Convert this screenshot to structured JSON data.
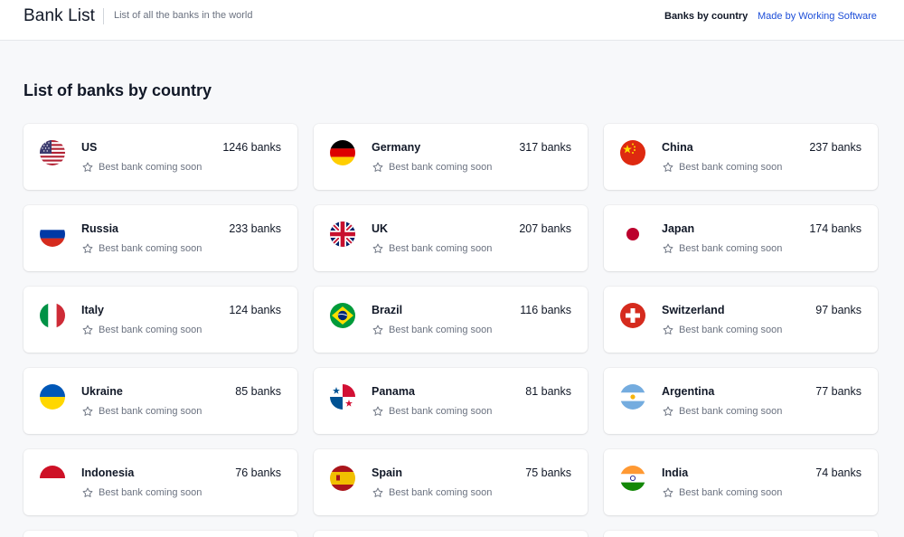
{
  "header": {
    "brand": "Bank List",
    "tagline": "List of all the banks in the world",
    "nav_bycountry": "Banks by country",
    "nav_made": "Made by Working Software"
  },
  "page": {
    "title": "List of banks by country"
  },
  "colors": {
    "accent": "#1d4ed8",
    "bg": "#f7f8fa",
    "card": "#ffffff",
    "muted": "#6b7280"
  },
  "countries": [
    {
      "name": "US",
      "count": "1246 banks",
      "sub": "Best bank coming soon",
      "flag": "us-flag-icon"
    },
    {
      "name": "Germany",
      "count": "317 banks",
      "sub": "Best bank coming soon",
      "flag": "germany-flag-icon"
    },
    {
      "name": "China",
      "count": "237 banks",
      "sub": "Best bank coming soon",
      "flag": "china-flag-icon"
    },
    {
      "name": "Russia",
      "count": "233 banks",
      "sub": "Best bank coming soon",
      "flag": "russia-flag-icon"
    },
    {
      "name": "UK",
      "count": "207 banks",
      "sub": "Best bank coming soon",
      "flag": "uk-flag-icon"
    },
    {
      "name": "Japan",
      "count": "174 banks",
      "sub": "Best bank coming soon",
      "flag": "japan-flag-icon"
    },
    {
      "name": "Italy",
      "count": "124 banks",
      "sub": "Best bank coming soon",
      "flag": "italy-flag-icon"
    },
    {
      "name": "Brazil",
      "count": "116 banks",
      "sub": "Best bank coming soon",
      "flag": "brazil-flag-icon"
    },
    {
      "name": "Switzerland",
      "count": "97 banks",
      "sub": "Best bank coming soon",
      "flag": "switzerland-flag-icon"
    },
    {
      "name": "Ukraine",
      "count": "85 banks",
      "sub": "Best bank coming soon",
      "flag": "ukraine-flag-icon"
    },
    {
      "name": "Panama",
      "count": "81 banks",
      "sub": "Best bank coming soon",
      "flag": "panama-flag-icon"
    },
    {
      "name": "Argentina",
      "count": "77 banks",
      "sub": "Best bank coming soon",
      "flag": "argentina-flag-icon"
    },
    {
      "name": "Indonesia",
      "count": "76 banks",
      "sub": "Best bank coming soon",
      "flag": "indonesia-flag-icon"
    },
    {
      "name": "Spain",
      "count": "75 banks",
      "sub": "Best bank coming soon",
      "flag": "spain-flag-icon"
    },
    {
      "name": "India",
      "count": "74 banks",
      "sub": "Best bank coming soon",
      "flag": "india-flag-icon"
    }
  ]
}
